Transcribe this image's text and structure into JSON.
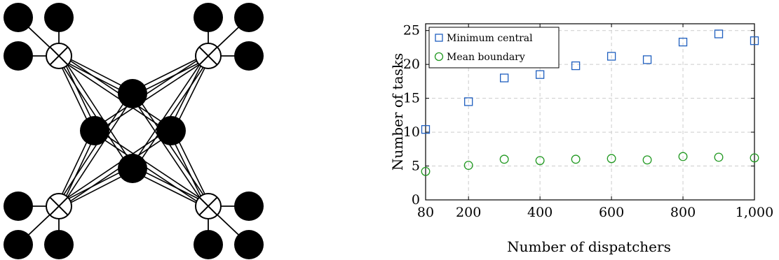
{
  "colors": {
    "node_fill": "#000000",
    "mux_fill": "#ffffff",
    "edge": "#000000",
    "series_central": "#1f5fbf",
    "series_boundary": "#229922",
    "grid": "#cccccc"
  },
  "network_diagram": {
    "central_nodes": [
      "top",
      "left",
      "right",
      "bottom"
    ],
    "hubs": [
      {
        "position": "top-left",
        "leaves": 3
      },
      {
        "position": "top-right",
        "leaves": 3
      },
      {
        "position": "bottom-left",
        "leaves": 3
      },
      {
        "position": "bottom-right",
        "leaves": 3
      }
    ],
    "hub_symbol": "circle-times"
  },
  "chart_data": {
    "type": "scatter",
    "xlabel": "Number of dispatchers",
    "ylabel": "Number of tasks",
    "xlim": [
      80,
      1000
    ],
    "ylim": [
      0,
      26
    ],
    "xticks": [
      80,
      200,
      400,
      600,
      800,
      1000
    ],
    "xtick_labels": [
      "80",
      "200",
      "400",
      "600",
      "800",
      "1,000"
    ],
    "yticks": [
      0,
      5,
      10,
      15,
      20,
      25
    ],
    "ytick_labels": [
      "0",
      "5",
      "10",
      "15",
      "20",
      "25"
    ],
    "grid": "dashed",
    "legend_position": "top-left",
    "series": [
      {
        "name": "Minimum central",
        "marker": "square",
        "color": "#1f5fbf",
        "x": [
          80,
          200,
          300,
          400,
          500,
          600,
          700,
          800,
          900,
          1000
        ],
        "y": [
          10.4,
          14.5,
          18.0,
          18.5,
          19.8,
          21.2,
          20.7,
          23.3,
          24.5,
          23.5
        ]
      },
      {
        "name": "Mean boundary",
        "marker": "circle",
        "color": "#229922",
        "x": [
          80,
          200,
          300,
          400,
          500,
          600,
          700,
          800,
          900,
          1000
        ],
        "y": [
          4.2,
          5.1,
          6.0,
          5.8,
          6.0,
          6.1,
          5.9,
          6.4,
          6.3,
          6.2
        ]
      }
    ]
  }
}
